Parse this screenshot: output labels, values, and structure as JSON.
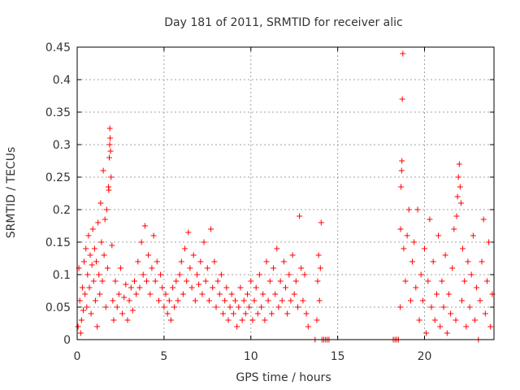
{
  "chart_data": {
    "type": "scatter",
    "title": "Day 181 of 2011, SRMTID for receiver alic",
    "xlabel": "GPS time / hours",
    "ylabel": "SRMTID / TECUs",
    "xlim": [
      0,
      24
    ],
    "ylim": [
      0,
      0.45
    ],
    "xticks": [
      "0",
      "5",
      "10",
      "15",
      "20"
    ],
    "yticks": [
      "0",
      "0.05",
      "0.1",
      "0.15",
      "0.2",
      "0.25",
      "0.3",
      "0.35",
      "0.4",
      "0.45"
    ],
    "grid": true,
    "marker": "+",
    "color": "#ff0000",
    "series": [
      {
        "name": "SRMTID",
        "points": [
          [
            0.05,
            0.02
          ],
          [
            0.1,
            0.11
          ],
          [
            0.15,
            0.06
          ],
          [
            0.2,
            0.01
          ],
          [
            0.25,
            0.03
          ],
          [
            0.3,
            0.08
          ],
          [
            0.35,
            0.045
          ],
          [
            0.4,
            0.12
          ],
          [
            0.45,
            0.07
          ],
          [
            0.5,
            0.14
          ],
          [
            0.55,
            0.05
          ],
          [
            0.6,
            0.1
          ],
          [
            0.65,
            0.16
          ],
          [
            0.7,
            0.08
          ],
          [
            0.75,
            0.13
          ],
          [
            0.8,
            0.04
          ],
          [
            0.85,
            0.115
          ],
          [
            0.9,
            0.17
          ],
          [
            0.95,
            0.09
          ],
          [
            1.0,
            0.14
          ],
          [
            1.05,
            0.06
          ],
          [
            1.1,
            0.12
          ],
          [
            1.15,
            0.02
          ],
          [
            1.2,
            0.18
          ],
          [
            1.25,
            0.1
          ],
          [
            1.3,
            0.07
          ],
          [
            1.35,
            0.21
          ],
          [
            1.4,
            0.15
          ],
          [
            1.45,
            0.09
          ],
          [
            1.5,
            0.26
          ],
          [
            1.55,
            0.13
          ],
          [
            1.6,
            0.185
          ],
          [
            1.65,
            0.05
          ],
          [
            1.7,
            0.2
          ],
          [
            1.75,
            0.11
          ],
          [
            1.8,
            0.235
          ],
          [
            1.82,
            0.23
          ],
          [
            1.85,
            0.28
          ],
          [
            1.87,
            0.3
          ],
          [
            1.88,
            0.325
          ],
          [
            1.9,
            0.31
          ],
          [
            1.92,
            0.29
          ],
          [
            1.95,
            0.25
          ],
          [
            2.0,
            0.145
          ],
          [
            2.05,
            0.06
          ],
          [
            2.1,
            0.03
          ],
          [
            2.2,
            0.09
          ],
          [
            2.3,
            0.05
          ],
          [
            2.4,
            0.07
          ],
          [
            2.5,
            0.11
          ],
          [
            2.6,
            0.04
          ],
          [
            2.7,
            0.065
          ],
          [
            2.8,
            0.085
          ],
          [
            2.9,
            0.03
          ],
          [
            3.0,
            0.06
          ],
          [
            3.1,
            0.08
          ],
          [
            3.2,
            0.045
          ],
          [
            3.3,
            0.09
          ],
          [
            3.4,
            0.07
          ],
          [
            3.5,
            0.12
          ],
          [
            3.6,
            0.08
          ],
          [
            3.7,
            0.15
          ],
          [
            3.8,
            0.1
          ],
          [
            3.9,
            0.175
          ],
          [
            4.0,
            0.09
          ],
          [
            4.1,
            0.13
          ],
          [
            4.2,
            0.07
          ],
          [
            4.3,
            0.11
          ],
          [
            4.4,
            0.16
          ],
          [
            4.5,
            0.09
          ],
          [
            4.6,
            0.12
          ],
          [
            4.7,
            0.06
          ],
          [
            4.8,
            0.1
          ],
          [
            4.9,
            0.08
          ],
          [
            5.0,
            0.05
          ],
          [
            5.1,
            0.07
          ],
          [
            5.2,
            0.04
          ],
          [
            5.3,
            0.06
          ],
          [
            5.4,
            0.03
          ],
          [
            5.5,
            0.08
          ],
          [
            5.6,
            0.05
          ],
          [
            5.7,
            0.09
          ],
          [
            5.8,
            0.06
          ],
          [
            5.9,
            0.1
          ],
          [
            6.0,
            0.12
          ],
          [
            6.1,
            0.07
          ],
          [
            6.2,
            0.14
          ],
          [
            6.3,
            0.09
          ],
          [
            6.4,
            0.165
          ],
          [
            6.5,
            0.11
          ],
          [
            6.6,
            0.08
          ],
          [
            6.7,
            0.13
          ],
          [
            6.8,
            0.06
          ],
          [
            6.9,
            0.1
          ],
          [
            7.0,
            0.085
          ],
          [
            7.1,
            0.12
          ],
          [
            7.2,
            0.07
          ],
          [
            7.3,
            0.15
          ],
          [
            7.4,
            0.09
          ],
          [
            7.5,
            0.11
          ],
          [
            7.6,
            0.06
          ],
          [
            7.7,
            0.17
          ],
          [
            7.8,
            0.08
          ],
          [
            7.9,
            0.12
          ],
          [
            8.0,
            0.05
          ],
          [
            8.1,
            0.09
          ],
          [
            8.2,
            0.07
          ],
          [
            8.3,
            0.1
          ],
          [
            8.4,
            0.04
          ],
          [
            8.5,
            0.06
          ],
          [
            8.6,
            0.08
          ],
          [
            8.7,
            0.03
          ],
          [
            8.8,
            0.05
          ],
          [
            8.9,
            0.07
          ],
          [
            9.0,
            0.04
          ],
          [
            9.1,
            0.06
          ],
          [
            9.2,
            0.02
          ],
          [
            9.3,
            0.05
          ],
          [
            9.4,
            0.08
          ],
          [
            9.5,
            0.03
          ],
          [
            9.6,
            0.06
          ],
          [
            9.7,
            0.04
          ],
          [
            9.8,
            0.07
          ],
          [
            9.9,
            0.05
          ],
          [
            10.0,
            0.09
          ],
          [
            10.1,
            0.03
          ],
          [
            10.2,
            0.06
          ],
          [
            10.3,
            0.08
          ],
          [
            10.4,
            0.04
          ],
          [
            10.5,
            0.1
          ],
          [
            10.6,
            0.05
          ],
          [
            10.7,
            0.07
          ],
          [
            10.8,
            0.03
          ],
          [
            10.9,
            0.12
          ],
          [
            11.0,
            0.06
          ],
          [
            11.1,
            0.09
          ],
          [
            11.2,
            0.04
          ],
          [
            11.3,
            0.11
          ],
          [
            11.4,
            0.07
          ],
          [
            11.5,
            0.14
          ],
          [
            11.6,
            0.05
          ],
          [
            11.7,
            0.09
          ],
          [
            11.8,
            0.06
          ],
          [
            11.9,
            0.12
          ],
          [
            12.0,
            0.08
          ],
          [
            12.1,
            0.04
          ],
          [
            12.2,
            0.1
          ],
          [
            12.3,
            0.06
          ],
          [
            12.4,
            0.13
          ],
          [
            12.5,
            0.07
          ],
          [
            12.6,
            0.09
          ],
          [
            12.7,
            0.05
          ],
          [
            12.8,
            0.19
          ],
          [
            12.9,
            0.11
          ],
          [
            13.0,
            0.06
          ],
          [
            13.1,
            0.1
          ],
          [
            13.2,
            0.04
          ],
          [
            13.3,
            0.02
          ],
          [
            13.7,
            0.0
          ],
          [
            13.8,
            0.03
          ],
          [
            13.85,
            0.09
          ],
          [
            13.9,
            0.13
          ],
          [
            13.95,
            0.06
          ],
          [
            14.0,
            0.11
          ],
          [
            14.05,
            0.18
          ],
          [
            14.1,
            0.0
          ],
          [
            14.2,
            0.0
          ],
          [
            14.3,
            0.0
          ],
          [
            14.4,
            0.0
          ],
          [
            14.5,
            0.0
          ],
          [
            18.2,
            0.0
          ],
          [
            18.3,
            0.0
          ],
          [
            18.4,
            0.0
          ],
          [
            18.5,
            0.0
          ],
          [
            18.6,
            0.05
          ],
          [
            18.62,
            0.17
          ],
          [
            18.65,
            0.235
          ],
          [
            18.68,
            0.26
          ],
          [
            18.7,
            0.275
          ],
          [
            18.72,
            0.37
          ],
          [
            18.75,
            0.44
          ],
          [
            18.8,
            0.14
          ],
          [
            18.9,
            0.09
          ],
          [
            19.0,
            0.16
          ],
          [
            19.1,
            0.2
          ],
          [
            19.2,
            0.06
          ],
          [
            19.3,
            0.12
          ],
          [
            19.4,
            0.15
          ],
          [
            19.5,
            0.08
          ],
          [
            19.6,
            0.2
          ],
          [
            19.7,
            0.03
          ],
          [
            19.8,
            0.1
          ],
          [
            19.9,
            0.06
          ],
          [
            20.0,
            0.14
          ],
          [
            20.1,
            0.01
          ],
          [
            20.2,
            0.09
          ],
          [
            20.3,
            0.185
          ],
          [
            20.4,
            0.05
          ],
          [
            20.5,
            0.12
          ],
          [
            20.6,
            0.03
          ],
          [
            20.7,
            0.07
          ],
          [
            20.8,
            0.16
          ],
          [
            20.9,
            0.02
          ],
          [
            21.0,
            0.09
          ],
          [
            21.1,
            0.05
          ],
          [
            21.2,
            0.13
          ],
          [
            21.3,
            0.01
          ],
          [
            21.4,
            0.07
          ],
          [
            21.5,
            0.04
          ],
          [
            21.6,
            0.11
          ],
          [
            21.7,
            0.17
          ],
          [
            21.8,
            0.03
          ],
          [
            21.85,
            0.19
          ],
          [
            21.9,
            0.22
          ],
          [
            21.95,
            0.25
          ],
          [
            22.0,
            0.27
          ],
          [
            22.05,
            0.235
          ],
          [
            22.1,
            0.21
          ],
          [
            22.15,
            0.06
          ],
          [
            22.2,
            0.14
          ],
          [
            22.3,
            0.09
          ],
          [
            22.4,
            0.02
          ],
          [
            22.5,
            0.12
          ],
          [
            22.6,
            0.05
          ],
          [
            22.7,
            0.1
          ],
          [
            22.8,
            0.16
          ],
          [
            22.9,
            0.03
          ],
          [
            23.0,
            0.08
          ],
          [
            23.1,
            0.0
          ],
          [
            23.2,
            0.06
          ],
          [
            23.3,
            0.12
          ],
          [
            23.4,
            0.185
          ],
          [
            23.5,
            0.04
          ],
          [
            23.6,
            0.09
          ],
          [
            23.7,
            0.15
          ],
          [
            23.8,
            0.02
          ],
          [
            23.9,
            0.07
          ]
        ]
      }
    ]
  }
}
